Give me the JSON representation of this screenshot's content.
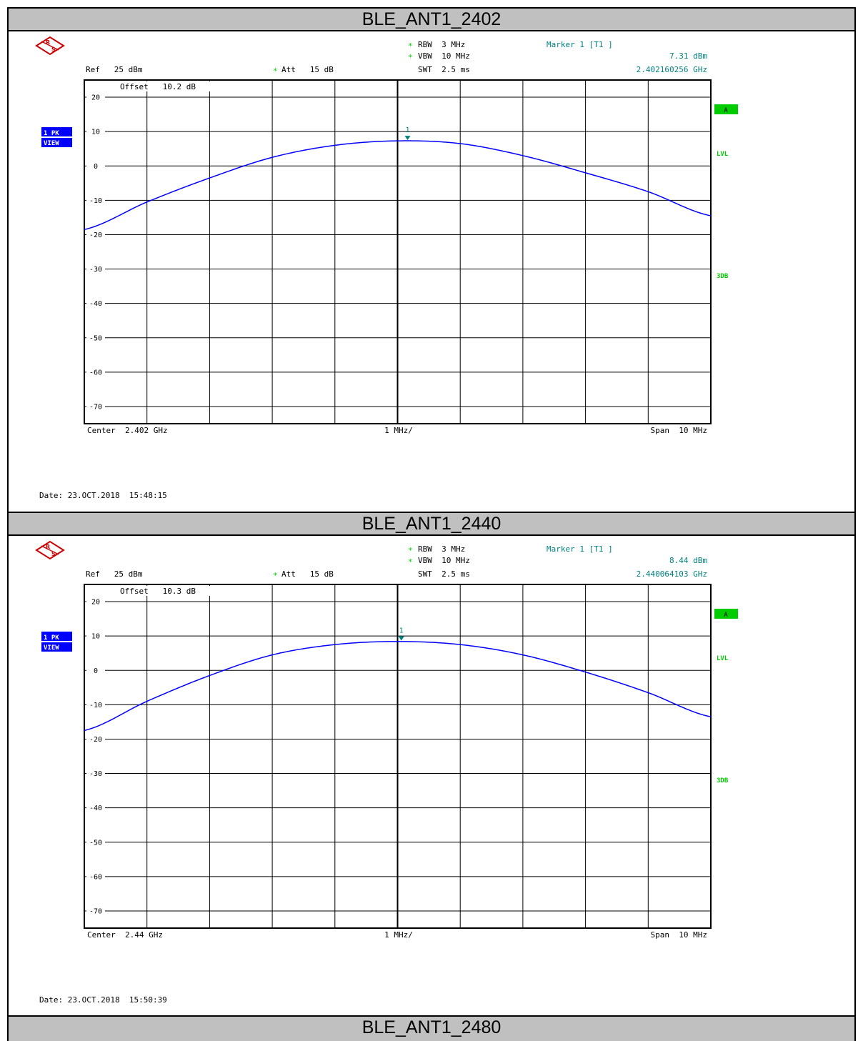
{
  "panels": [
    {
      "title": "BLE_ANT1_2402",
      "header": {
        "rbw": "RBW  3 MHz",
        "vbw": "VBW  10 MHz",
        "swt": "SWT  2.5 ms",
        "ref": "Ref   25 dBm",
        "att": "Att   15 dB",
        "offset": "Offset   10.2 dB",
        "marker_label": "Marker 1 [T1 ]",
        "marker_level": "7.31 dBm",
        "marker_freq": "2.402160256 GHz"
      },
      "side": {
        "trace_mode": "1 PK",
        "trace_view": "VIEW",
        "a": "A",
        "lvl": "LVL",
        "db3": "3DB"
      },
      "footer": {
        "center": "Center  2.402 GHz",
        "div": "1 MHz/",
        "span": "Span  10 MHz",
        "date": "Date: 23.OCT.2018  15:48:15"
      },
      "marker_text": "1"
    },
    {
      "title": "BLE_ANT1_2440",
      "header": {
        "rbw": "RBW  3 MHz",
        "vbw": "VBW  10 MHz",
        "swt": "SWT  2.5 ms",
        "ref": "Ref   25 dBm",
        "att": "Att   15 dB",
        "offset": "Offset   10.3 dB",
        "marker_label": "Marker 1 [T1 ]",
        "marker_level": "8.44 dBm",
        "marker_freq": "2.440064103 GHz"
      },
      "side": {
        "trace_mode": "1 PK",
        "trace_view": "VIEW",
        "a": "A",
        "lvl": "LVL",
        "db3": "3DB"
      },
      "footer": {
        "center": "Center  2.44 GHz",
        "div": "1 MHz/",
        "span": "Span  10 MHz",
        "date": "Date: 23.OCT.2018  15:50:39"
      },
      "marker_text": "1"
    }
  ],
  "bottom_title": "BLE_ANT1_2480",
  "colors": {
    "trace": "#0000ff",
    "marker": "#008080",
    "status_green": "#00cc00",
    "trace_badge": "#0000ff",
    "title_bar": "#c0c0c0"
  },
  "chart_data": [
    {
      "type": "line",
      "title": "BLE_ANT1_2402",
      "xlabel": "",
      "ylabel": "",
      "x_unit": "MHz offset from 2.402 GHz",
      "xlim": [
        -5,
        5
      ],
      "ylim": [
        -75,
        25
      ],
      "y_ticks": [
        20,
        10,
        0,
        -10,
        -20,
        -30,
        -40,
        -50,
        -60,
        -70
      ],
      "y_tick_labels": [
        "20",
        "10",
        "0",
        "-10",
        "-20",
        "-30",
        "-40",
        "-50",
        "-60",
        "-70"
      ],
      "grid": true,
      "series": [
        {
          "x": [
            -5,
            -4,
            -3,
            -2,
            -1,
            0,
            1,
            2,
            3,
            4,
            5
          ],
          "values": [
            -18.5,
            -10.5,
            -3.5,
            2.5,
            6.0,
            7.3,
            6.5,
            3.0,
            -2.0,
            -7.5,
            -14.5
          ]
        }
      ],
      "marker": {
        "x": 0.16,
        "y": 7.31
      }
    },
    {
      "type": "line",
      "title": "BLE_ANT1_2440",
      "xlabel": "",
      "ylabel": "",
      "x_unit": "MHz offset from 2.44 GHz",
      "xlim": [
        -5,
        5
      ],
      "ylim": [
        -75,
        25
      ],
      "y_ticks": [
        20,
        10,
        0,
        -10,
        -20,
        -30,
        -40,
        -50,
        -60,
        -70
      ],
      "y_tick_labels": [
        "20",
        "10",
        "0",
        "-10",
        "-20",
        "-30",
        "-40",
        "-50",
        "-60",
        "-70"
      ],
      "grid": true,
      "series": [
        {
          "x": [
            -5,
            -4,
            -3,
            -2,
            -1,
            0,
            1,
            2,
            3,
            4,
            5
          ],
          "values": [
            -17.5,
            -9.0,
            -1.5,
            4.5,
            7.5,
            8.4,
            7.5,
            4.5,
            -0.5,
            -6.5,
            -13.5
          ]
        }
      ],
      "marker": {
        "x": 0.06,
        "y": 8.44
      }
    }
  ]
}
